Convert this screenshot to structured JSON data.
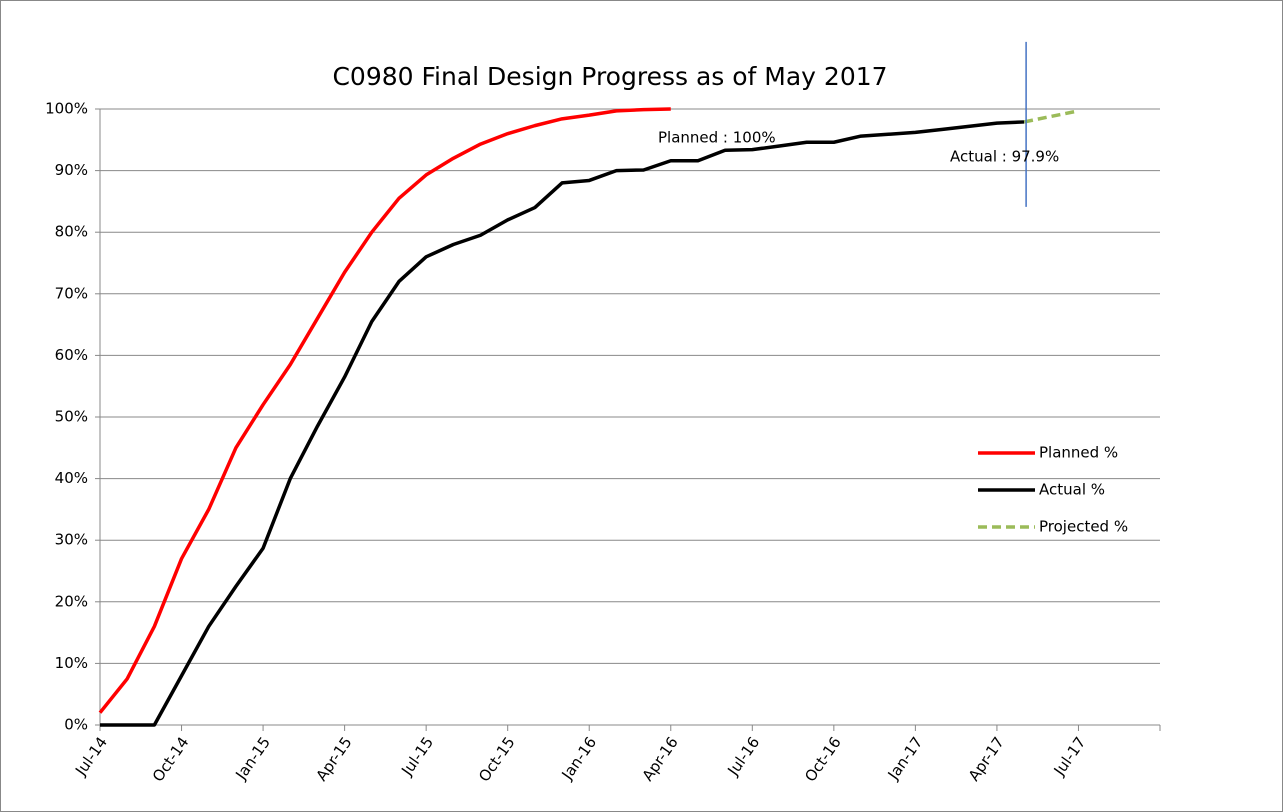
{
  "chart_data": {
    "type": "line",
    "title": "C0980 Final Design Progress as of May 2017",
    "categories": [
      "Jul-14",
      null,
      null,
      "Oct-14",
      null,
      null,
      "Jan-15",
      null,
      null,
      "Apr-15",
      null,
      null,
      "Jul-15",
      null,
      null,
      "Oct-15",
      null,
      null,
      "Jan-16",
      null,
      null,
      "Apr-16",
      null,
      null,
      "Jul-16",
      null,
      null,
      "Oct-16",
      null,
      null,
      "Jan-17",
      null,
      null,
      "Apr-17",
      null,
      null,
      "Jul-17",
      null,
      null,
      null
    ],
    "series": [
      {
        "name": "Planned %",
        "color": "#ff0000",
        "dashed": false,
        "values": [
          2,
          7.5,
          16,
          27,
          35,
          45,
          52,
          58.5,
          66,
          73.5,
          80,
          85.5,
          89.3,
          92,
          94.3,
          96,
          97.3,
          98.4,
          99,
          99.7,
          99.9,
          100,
          null,
          null,
          null,
          null,
          null,
          null,
          null,
          null,
          null,
          null,
          null,
          null,
          null,
          null,
          null,
          null,
          null,
          null
        ]
      },
      {
        "name": "Actual %",
        "color": "#000000",
        "dashed": false,
        "values": [
          0,
          0,
          0,
          8,
          16,
          22.5,
          28.7,
          40,
          48.5,
          56.5,
          65.5,
          72,
          76,
          78,
          79.5,
          82,
          84,
          88,
          88.4,
          90,
          90.1,
          91.6,
          91.6,
          93.3,
          93.4,
          94,
          94.6,
          94.6,
          95.6,
          95.9,
          96.2,
          96.7,
          97.2,
          97.7,
          97.9,
          null,
          null,
          null,
          null,
          null
        ]
      },
      {
        "name": "Projected %",
        "color": "#9bbb59",
        "dashed": true,
        "values": [
          null,
          null,
          null,
          null,
          null,
          null,
          null,
          null,
          null,
          null,
          null,
          null,
          null,
          null,
          null,
          null,
          null,
          null,
          null,
          null,
          null,
          null,
          null,
          null,
          null,
          null,
          null,
          null,
          null,
          null,
          null,
          null,
          null,
          null,
          97.9,
          98.8,
          99.7,
          null,
          null,
          null
        ]
      }
    ],
    "annotations": [
      "Planned : 100%",
      "Actual : 97.9%"
    ],
    "ylim": [
      0,
      100
    ],
    "yticks": [
      {
        "value": 0,
        "label": "0%"
      },
      {
        "value": 10,
        "label": "10%"
      },
      {
        "value": 20,
        "label": "20%"
      },
      {
        "value": 30,
        "label": "30%"
      },
      {
        "value": 40,
        "label": "40%"
      },
      {
        "value": 50,
        "label": "50%"
      },
      {
        "value": 60,
        "label": "60%"
      },
      {
        "value": 70,
        "label": "70%"
      },
      {
        "value": 80,
        "label": "80%"
      },
      {
        "value": 90,
        "label": "90%"
      },
      {
        "value": 100,
        "label": "100%"
      }
    ],
    "grid": true,
    "legend": "right"
  }
}
